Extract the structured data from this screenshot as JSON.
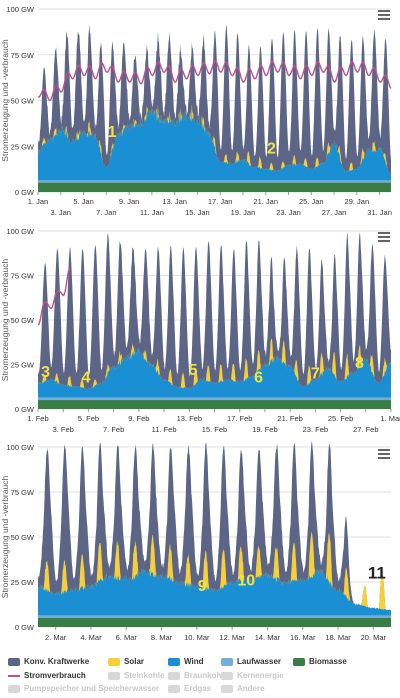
{
  "colors": {
    "konv": "#5c6585",
    "solar": "#f5d03a",
    "wind": "#1a8fd4",
    "lauf": "#74add6",
    "bio": "#3a7d44",
    "verbrauch": "#c0508c",
    "gridline": "#e2e2e2",
    "annotation": "#f0e442",
    "annotation_last": "#222222",
    "disabled": "#cccccc"
  },
  "legend": {
    "row1": [
      {
        "label": "Konv. Kraftwerke",
        "color": "#5c6585",
        "kind": "area",
        "enabled": true
      },
      {
        "label": "Solar",
        "color": "#f5d03a",
        "kind": "area",
        "enabled": true
      },
      {
        "label": "Wind",
        "color": "#1a8fd4",
        "kind": "area",
        "enabled": true
      },
      {
        "label": "Laufwasser",
        "color": "#74add6",
        "kind": "area",
        "enabled": true
      },
      {
        "label": "Biomasse",
        "color": "#3a7d44",
        "kind": "area",
        "enabled": true
      }
    ],
    "row2": [
      {
        "label": "Stromverbrauch",
        "color": "#c0508c",
        "kind": "line",
        "enabled": true
      },
      {
        "label": "Steinkohle",
        "color": "#cccccc",
        "kind": "area",
        "enabled": false
      },
      {
        "label": "Braunkohle",
        "color": "#cccccc",
        "kind": "area",
        "enabled": false
      },
      {
        "label": "Kernenergie",
        "color": "#cccccc",
        "kind": "area",
        "enabled": false
      }
    ],
    "row3": [
      {
        "label": "Pumpspeicher und Speicherwasser",
        "color": "#cccccc",
        "kind": "area",
        "enabled": false
      },
      {
        "label": "Erdgas",
        "color": "#cccccc",
        "kind": "area",
        "enabled": false
      },
      {
        "label": "Andere",
        "color": "#cccccc",
        "kind": "area",
        "enabled": false
      }
    ]
  },
  "chart_data": [
    {
      "type": "area",
      "ylabel": "Stromerzeugung und -verbrauch",
      "ylim": [
        0,
        100
      ],
      "yticks": [
        "0 GW",
        "25 GW",
        "50 GW",
        "75 GW",
        "100 GW"
      ],
      "x_unit": "day",
      "xlim": [
        1,
        32
      ],
      "xticks_top": [
        {
          "x": 1,
          "label": "1. Jan"
        },
        {
          "x": 5,
          "label": "5. Jan"
        },
        {
          "x": 9,
          "label": "9. Jan"
        },
        {
          "x": 13,
          "label": "13. Jan"
        },
        {
          "x": 17,
          "label": "17. Jan"
        },
        {
          "x": 21,
          "label": "21. Jan"
        },
        {
          "x": 25,
          "label": "25. Jan"
        },
        {
          "x": 29,
          "label": "29. Jan"
        }
      ],
      "xticks_bottom": [
        {
          "x": 3,
          "label": "3. Jan"
        },
        {
          "x": 7,
          "label": "7. Jan"
        },
        {
          "x": 11,
          "label": "11. Jan"
        },
        {
          "x": 15,
          "label": "15. Jan"
        },
        {
          "x": 19,
          "label": "19. Jan"
        },
        {
          "x": 23,
          "label": "23. Jan"
        },
        {
          "x": 27,
          "label": "27. Jan"
        },
        {
          "x": 31,
          "label": "31. Jan"
        }
      ],
      "grid": true,
      "series": [
        {
          "name": "Biomasse",
          "x": [
            1,
            32
          ],
          "values": [
            5,
            5
          ]
        },
        {
          "name": "Laufwasser",
          "x": [
            1,
            32
          ],
          "values": [
            1.5,
            1.5
          ]
        },
        {
          "name": "Wind",
          "x": [
            1,
            2,
            3,
            4,
            5,
            6,
            7,
            8,
            9,
            10,
            11,
            12,
            13,
            14,
            15,
            16,
            17,
            18,
            19,
            20,
            21,
            22,
            23,
            24,
            25,
            26,
            27,
            28,
            29,
            30,
            31,
            32
          ],
          "values": [
            16,
            22,
            28,
            21,
            26,
            24,
            7,
            24,
            29,
            31,
            37,
            33,
            32,
            35,
            34,
            25,
            10,
            9,
            11,
            7,
            6,
            5,
            8,
            9,
            6,
            9,
            20,
            5,
            6,
            16,
            17,
            3
          ]
        },
        {
          "name": "Solar",
          "x": [
            1,
            2,
            3,
            4,
            5,
            6,
            7,
            8,
            9,
            10,
            11,
            12,
            13,
            14,
            15,
            16,
            17,
            18,
            19,
            20,
            21,
            22,
            23,
            24,
            25,
            26,
            27,
            28,
            29,
            30,
            31,
            32
          ],
          "values": [
            3,
            3,
            4,
            2,
            5,
            6,
            2,
            3,
            2,
            3,
            4,
            3,
            3,
            4,
            5,
            4,
            5,
            4,
            6,
            7,
            5,
            3,
            4,
            5,
            4,
            6,
            5,
            4,
            5,
            6,
            4,
            3
          ]
        },
        {
          "name": "Konv. Kraftwerke",
          "x": [
            1,
            2,
            3,
            4,
            5,
            6,
            7,
            8,
            9,
            10,
            11,
            12,
            13,
            14,
            15,
            16,
            17,
            18,
            19,
            20,
            21,
            22,
            23,
            24,
            25,
            26,
            27,
            28,
            29,
            30,
            31,
            32
          ],
          "values": [
            40,
            38,
            48,
            57,
            54,
            52,
            60,
            52,
            40,
            32,
            34,
            45,
            42,
            28,
            40,
            48,
            69,
            72,
            60,
            58,
            64,
            72,
            70,
            68,
            72,
            70,
            57,
            69,
            66,
            58,
            64,
            65
          ]
        },
        {
          "name": "Stromverbrauch",
          "x": [
            1,
            2,
            3,
            4,
            5,
            6,
            7,
            8,
            9,
            10,
            11,
            12,
            13,
            14,
            15,
            16,
            17,
            18,
            19,
            20,
            21,
            22,
            23,
            24,
            25,
            26,
            27,
            28,
            29,
            30,
            31,
            32
          ],
          "values": [
            57,
            55,
            60,
            68,
            70,
            68,
            72,
            66,
            66,
            65,
            70,
            72,
            66,
            68,
            70,
            71,
            72,
            70,
            66,
            68,
            70,
            72,
            70,
            68,
            70,
            72,
            66,
            70,
            72,
            70,
            66,
            62
          ]
        }
      ],
      "annotations": [
        {
          "label": "1",
          "x": 7.5,
          "y": 30
        },
        {
          "label": "2",
          "x": 21.5,
          "y": 21
        }
      ]
    },
    {
      "type": "area",
      "ylabel": "Stromerzeugung und -verbrauch",
      "ylim": [
        0,
        100
      ],
      "yticks": [
        "0 GW",
        "25 GW",
        "50 GW",
        "75 GW",
        "100 GW"
      ],
      "x_unit": "day",
      "xlim": [
        1,
        29
      ],
      "xticks_top": [
        {
          "x": 1,
          "label": "1. Feb"
        },
        {
          "x": 5,
          "label": "5. Feb"
        },
        {
          "x": 9,
          "label": "9. Feb"
        },
        {
          "x": 13,
          "label": "13. Feb"
        },
        {
          "x": 17,
          "label": "17. Feb"
        },
        {
          "x": 21,
          "label": "21. Feb"
        },
        {
          "x": 25,
          "label": "25. Feb"
        },
        {
          "x": 29,
          "label": "1. Mar"
        }
      ],
      "xticks_bottom": [
        {
          "x": 3,
          "label": "3. Feb"
        },
        {
          "x": 7,
          "label": "7. Feb"
        },
        {
          "x": 11,
          "label": "11. Feb"
        },
        {
          "x": 15,
          "label": "15. Feb"
        },
        {
          "x": 19,
          "label": "19. Feb"
        },
        {
          "x": 23,
          "label": "23. Feb"
        },
        {
          "x": 27,
          "label": "27. Feb"
        }
      ],
      "grid": true,
      "series": [
        {
          "name": "Biomasse",
          "x": [
            1,
            29
          ],
          "values": [
            5,
            5
          ]
        },
        {
          "name": "Laufwasser",
          "x": [
            1,
            29
          ],
          "values": [
            1.5,
            1.5
          ]
        },
        {
          "name": "Wind",
          "x": [
            1,
            2,
            3,
            4,
            5,
            6,
            7,
            8,
            9,
            10,
            11,
            12,
            13,
            14,
            15,
            16,
            17,
            18,
            19,
            20,
            21,
            22,
            23,
            24,
            25,
            26,
            27,
            28,
            29
          ],
          "values": [
            8,
            10,
            7,
            6,
            5,
            8,
            17,
            22,
            26,
            18,
            10,
            6,
            5,
            10,
            8,
            10,
            9,
            12,
            18,
            22,
            17,
            6,
            10,
            16,
            9,
            14,
            21,
            8,
            20
          ]
        },
        {
          "name": "Solar",
          "x": [
            1,
            2,
            3,
            4,
            5,
            6,
            7,
            8,
            9,
            10,
            11,
            12,
            13,
            14,
            15,
            16,
            17,
            18,
            19,
            20,
            21,
            22,
            23,
            24,
            25,
            26,
            27,
            28,
            29
          ],
          "values": [
            3,
            4,
            5,
            6,
            3,
            4,
            5,
            6,
            4,
            6,
            7,
            8,
            9,
            8,
            10,
            9,
            11,
            12,
            10,
            14,
            10,
            9,
            11,
            12,
            13,
            12,
            10,
            9,
            6
          ]
        },
        {
          "name": "Konv. Kraftwerke",
          "x": [
            1,
            2,
            3,
            4,
            5,
            6,
            7,
            8,
            9,
            10,
            11,
            12,
            13,
            14,
            15,
            16,
            17,
            18,
            19,
            20,
            21,
            22,
            23,
            24,
            25,
            26,
            27,
            28,
            29
          ],
          "values": [
            54,
            70,
            72,
            73,
            75,
            76,
            72,
            56,
            55,
            60,
            68,
            72,
            70,
            68,
            72,
            64,
            66,
            68,
            58,
            36,
            58,
            70,
            64,
            44,
            66,
            70,
            58,
            68,
            50
          ]
        },
        {
          "name": "Stromverbrauch",
          "x": [
            1,
            1.5,
            2,
            2.5,
            3,
            3.5
          ],
          "values": [
            52,
            60,
            62,
            66,
            70,
            79
          ]
        }
      ],
      "annotations": [
        {
          "label": "3",
          "x": 1.6,
          "y": 18
        },
        {
          "label": "4",
          "x": 4.8,
          "y": 15
        },
        {
          "label": "5",
          "x": 13.3,
          "y": 19
        },
        {
          "label": "6",
          "x": 18.5,
          "y": 15
        },
        {
          "label": "7",
          "x": 23.0,
          "y": 17
        },
        {
          "label": "8",
          "x": 26.5,
          "y": 23
        }
      ]
    },
    {
      "type": "area",
      "ylabel": "Stromerzeugung und -verbrauch",
      "ylim": [
        0,
        100
      ],
      "yticks": [
        "0 GW",
        "25 GW",
        "50 GW",
        "75 GW",
        "100 GW"
      ],
      "x_unit": "day",
      "xlim": [
        1,
        21
      ],
      "xticks_bottom": [
        {
          "x": 2,
          "label": "2. Mar"
        },
        {
          "x": 4,
          "label": "4. Mar"
        },
        {
          "x": 6,
          "label": "6. Mar"
        },
        {
          "x": 8,
          "label": "8. Mar"
        },
        {
          "x": 10,
          "label": "10. Mar"
        },
        {
          "x": 12,
          "label": "12. Mar"
        },
        {
          "x": 14,
          "label": "14. Mar"
        },
        {
          "x": 16,
          "label": "16. Mar"
        },
        {
          "x": 18,
          "label": "18. Mar"
        },
        {
          "x": 20,
          "label": "20. Mar"
        }
      ],
      "grid": true,
      "series": [
        {
          "name": "Biomasse",
          "x": [
            1,
            21
          ],
          "values": [
            5,
            5
          ]
        },
        {
          "name": "Laufwasser",
          "x": [
            1,
            21
          ],
          "values": [
            1.5,
            1.5
          ]
        },
        {
          "name": "Wind",
          "x": [
            1,
            2,
            3,
            4,
            5,
            6,
            7,
            8,
            9,
            10,
            11,
            12,
            13,
            14,
            15,
            16,
            17,
            18,
            19,
            20,
            21
          ],
          "values": [
            16,
            12,
            14,
            16,
            22,
            20,
            24,
            22,
            18,
            16,
            14,
            18,
            20,
            22,
            18,
            20,
            24,
            14,
            6,
            4,
            3
          ]
        },
        {
          "name": "Solar",
          "x": [
            1,
            2,
            3,
            4,
            5,
            6,
            7,
            8,
            9,
            10,
            11,
            12,
            13,
            14,
            15,
            16,
            17,
            18,
            19,
            20,
            21
          ],
          "values": [
            14,
            18,
            16,
            20,
            22,
            18,
            20,
            22,
            14,
            18,
            22,
            20,
            18,
            16,
            20,
            22,
            28,
            26,
            4,
            18,
            22
          ]
        },
        {
          "name": "Konv. Kraftwerke",
          "x": [
            1,
            2,
            3,
            4,
            5,
            6,
            7,
            8,
            9,
            10,
            11,
            12,
            13,
            14,
            15,
            16,
            17,
            18,
            19,
            20,
            21
          ],
          "values": [
            60,
            66,
            64,
            58,
            54,
            56,
            52,
            52,
            60,
            62,
            60,
            56,
            54,
            56,
            58,
            54,
            48,
            54,
            0,
            0,
            0
          ]
        }
      ],
      "annotations": [
        {
          "label": "9",
          "x": 10.3,
          "y": 20
        },
        {
          "label": "10",
          "x": 12.8,
          "y": 23
        },
        {
          "label": "11",
          "x": 20.2,
          "y": 27
        }
      ]
    }
  ]
}
